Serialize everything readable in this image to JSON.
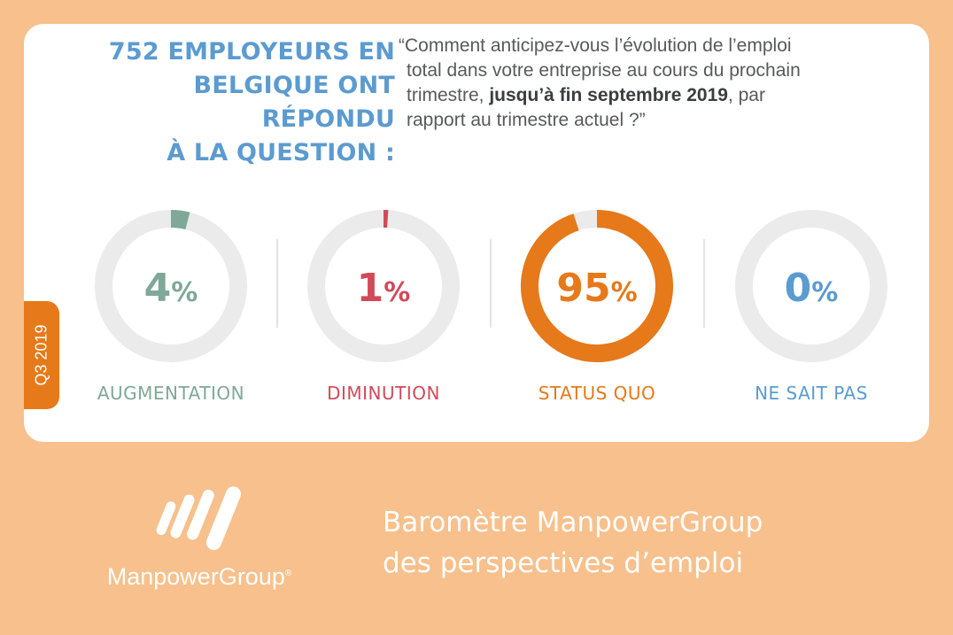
{
  "headline": [
    "752 EMPLOYEURS EN",
    "BELGIQUE ONT RÉPONDU",
    "À LA QUESTION :"
  ],
  "quote": {
    "line1": "“Comment anticipez-vous l’évolution de l’emploi",
    "line2": "total dans votre entreprise au cours du prochain",
    "line3_pre": "trimestre, ",
    "line3_bold": "jusqu’à fin septembre 2019",
    "line3_post": ", par",
    "line4": "rapport au trimestre actuel ?”"
  },
  "period_tab": "Q3 2019",
  "chart_data": {
    "type": "donut",
    "categories": [
      "AUGMENTATION",
      "DIMINUTION",
      "STATUS QUO",
      "NE SAIT PAS"
    ],
    "values": [
      4,
      1,
      95,
      0
    ],
    "unit": "%",
    "colors": [
      "#7fa898",
      "#d24a5a",
      "#e67919",
      "#5b9bd0"
    ],
    "track_color": "#ebebeb"
  },
  "footer": {
    "brand": "ManpowerGroup",
    "brand_mark": "®",
    "title_line1": "Baromètre ManpowerGroup",
    "title_line2": "des perspectives d’emploi"
  }
}
